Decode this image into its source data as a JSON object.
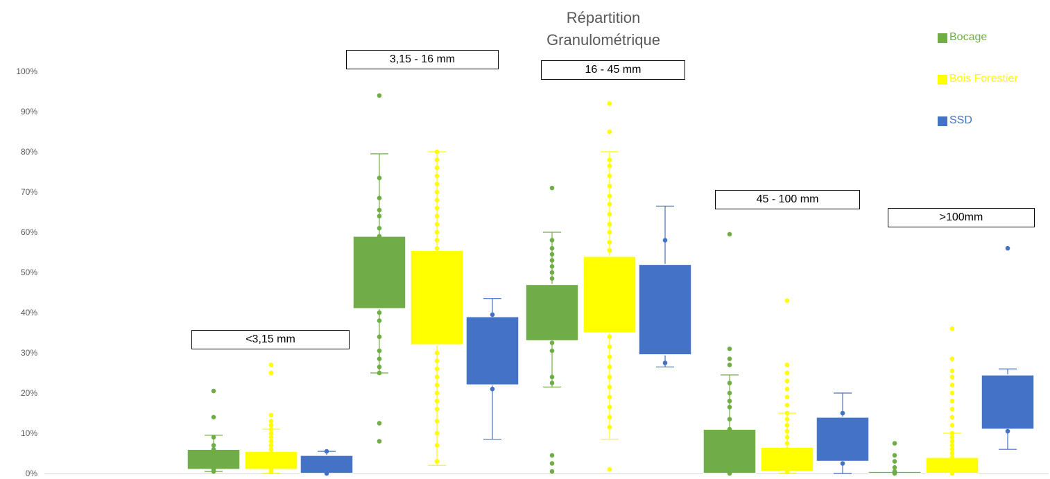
{
  "chart_data": {
    "type": "box",
    "title_lines": [
      "Répartition",
      "Granulométrique"
    ],
    "y_ticks": [
      "0%",
      "10%",
      "20%",
      "30%",
      "40%",
      "50%",
      "60%",
      "70%",
      "80%",
      "90%",
      "100%"
    ],
    "ylim": [
      0,
      100
    ],
    "categories": [
      "<3,15 mm",
      "3,15 - 16 mm",
      "16 - 45 mm",
      "45 - 100 mm",
      ">100mm"
    ],
    "legend_position": "top-right",
    "series": [
      {
        "name": "Bocage",
        "color": "#70ad47",
        "boxes": [
          {
            "whisker_low": 0.5,
            "q1": 1,
            "median": 1,
            "q3": 6,
            "whisker_high": 9.5,
            "points": [
              0.5,
              1,
              2,
              3,
              4,
              5,
              6,
              7,
              9,
              14,
              20.5
            ]
          },
          {
            "whisker_low": 25,
            "q1": 41,
            "median": 41,
            "q3": 59,
            "whisker_high": 79.5,
            "points": [
              8,
              12.5,
              25,
              26.5,
              28.5,
              30.5,
              34,
              38,
              40,
              59,
              61,
              64,
              65.5,
              68.5,
              73.5,
              94
            ]
          },
          {
            "whisker_low": 21.5,
            "q1": 33,
            "median": 33,
            "q3": 47,
            "whisker_high": 60,
            "points": [
              0.5,
              2.5,
              4.5,
              22.5,
              24,
              30.5,
              32.5,
              48.5,
              50,
              51.5,
              53,
              54.5,
              56,
              58,
              71
            ]
          },
          {
            "whisker_low": 0,
            "q1": 0,
            "median": 0,
            "q3": 11,
            "whisker_high": 24.5,
            "points": [
              0,
              11,
              13.5,
              16.5,
              18,
              20,
              22.5,
              27,
              28.5,
              31,
              59.5
            ]
          },
          {
            "whisker_low": 0,
            "q1": 0,
            "median": 0,
            "q3": 0.5,
            "whisker_high": 0.5,
            "points": [
              0,
              0.5,
              1.5,
              3,
              4.5,
              7.5
            ]
          }
        ]
      },
      {
        "name": "Bois Forestier",
        "color": "#ffff00",
        "boxes": [
          {
            "whisker_low": 0,
            "q1": 1,
            "median": 1,
            "q3": 5.5,
            "whisker_high": 11,
            "points": [
              0.5,
              1,
              2,
              3,
              4,
              5,
              6,
              7,
              8,
              9,
              10,
              11,
              12,
              13,
              14.5,
              25,
              27
            ]
          },
          {
            "whisker_low": 2,
            "q1": 32,
            "median": 32,
            "q3": 55.5,
            "whisker_high": 80,
            "points": [
              3,
              7,
              10,
              13,
              16,
              18,
              20,
              22,
              24,
              26,
              28,
              30,
              56,
              58,
              60,
              62,
              64,
              66,
              68,
              70,
              72,
              74,
              76,
              78,
              80
            ]
          },
          {
            "whisker_low": 8.5,
            "q1": 35,
            "median": 35,
            "q3": 54,
            "whisker_high": 80,
            "points": [
              1,
              11.5,
              14,
              16.5,
              19,
              21.5,
              24,
              26.5,
              29,
              31.5,
              34,
              55.5,
              57.5,
              60,
              62,
              64.5,
              67,
              69,
              71.5,
              74,
              76.5,
              78,
              85,
              92
            ]
          },
          {
            "whisker_low": 0,
            "q1": 0.5,
            "median": 0.5,
            "q3": 6.5,
            "whisker_high": 15,
            "points": [
              0.5,
              1.5,
              3,
              4.5,
              6,
              7.5,
              9,
              10.5,
              12,
              13.5,
              15,
              17,
              19,
              21,
              23,
              25,
              27,
              43
            ]
          },
          {
            "whisker_low": 0,
            "q1": 0,
            "median": 0,
            "q3": 4,
            "whisker_high": 10,
            "points": [
              0,
              1,
              2,
              3,
              4,
              5,
              6,
              7,
              8,
              9,
              10,
              12,
              14,
              16,
              18,
              20,
              22,
              24,
              25.5,
              28.5,
              36
            ]
          }
        ]
      },
      {
        "name": "SSD",
        "color": "#4472c4",
        "boxes": [
          {
            "whisker_low": 0,
            "q1": 0,
            "median": 0,
            "q3": 4.5,
            "whisker_high": 5.5,
            "points": [
              0,
              5.5
            ]
          },
          {
            "whisker_low": 8.5,
            "q1": 22,
            "median": 22,
            "q3": 39,
            "whisker_high": 43.5,
            "points": [
              21,
              39.5
            ]
          },
          {
            "whisker_low": 26.5,
            "q1": 29.5,
            "median": 29.5,
            "q3": 52,
            "whisker_high": 66.5,
            "points": [
              27.5,
              58
            ]
          },
          {
            "whisker_low": 0,
            "q1": 3,
            "median": 3,
            "q3": 14,
            "whisker_high": 20,
            "points": [
              2.5,
              15
            ]
          },
          {
            "whisker_low": 6,
            "q1": 11,
            "median": 11,
            "q3": 24.5,
            "whisker_high": 26,
            "points": [
              10.5,
              56
            ]
          }
        ]
      }
    ]
  }
}
